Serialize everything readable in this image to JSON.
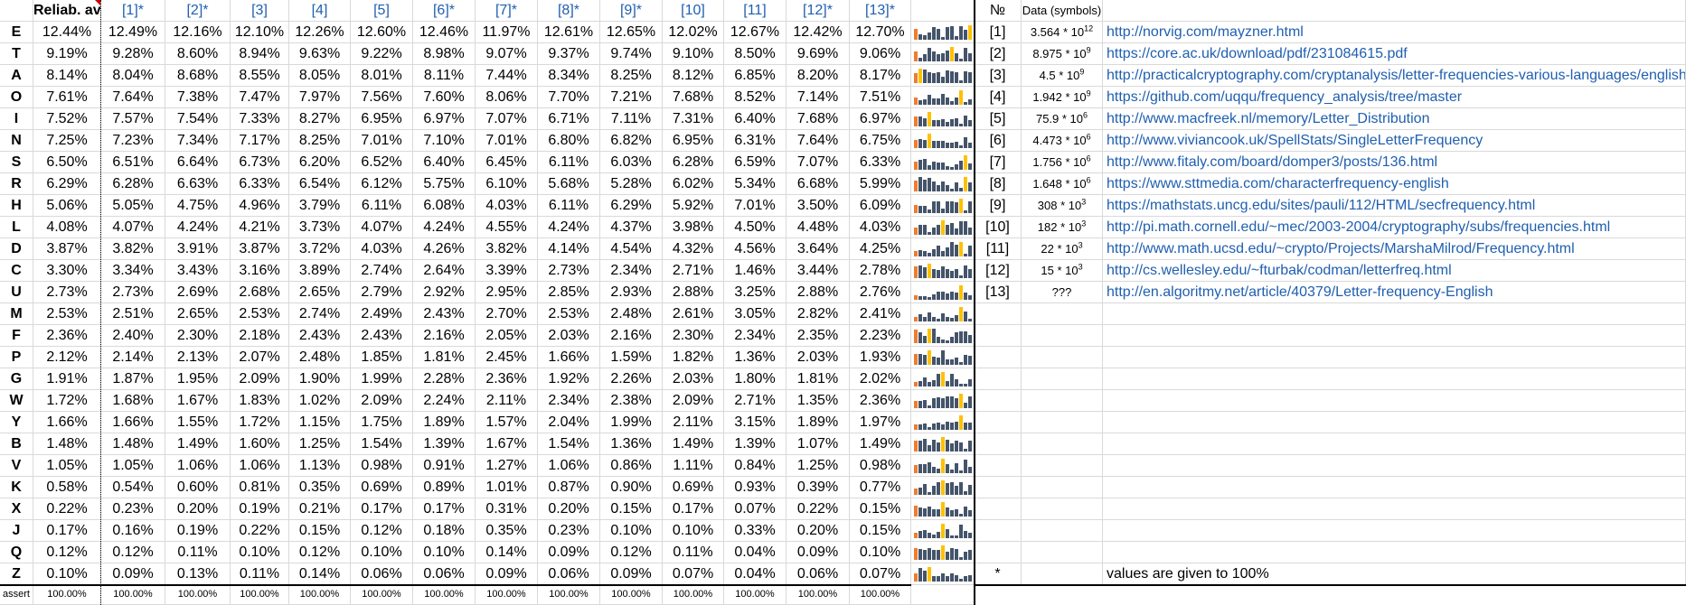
{
  "header": {
    "avg_label": "Reliab. avg",
    "sources": [
      "[1]*",
      "[2]*",
      "[3]",
      "[4]",
      "[5]",
      "[6]*",
      "[7]*",
      "[8]*",
      "[9]*",
      "[10]",
      "[11]",
      "[12]*",
      "[13]*"
    ],
    "no_label": "№",
    "data_label": "Data (symbols)"
  },
  "rows": [
    {
      "letter": "E",
      "avg": "12.44%",
      "vals": [
        "12.49%",
        "12.16%",
        "12.10%",
        "12.26%",
        "12.60%",
        "12.46%",
        "11.97%",
        "12.61%",
        "12.65%",
        "12.02%",
        "12.67%",
        "12.42%",
        "12.70%"
      ]
    },
    {
      "letter": "T",
      "avg": "9.19%",
      "vals": [
        "9.28%",
        "8.60%",
        "8.94%",
        "9.63%",
        "9.22%",
        "8.98%",
        "9.07%",
        "9.37%",
        "9.74%",
        "9.10%",
        "8.50%",
        "9.69%",
        "9.06%"
      ]
    },
    {
      "letter": "A",
      "avg": "8.14%",
      "vals": [
        "8.04%",
        "8.68%",
        "8.55%",
        "8.05%",
        "8.01%",
        "8.11%",
        "7.44%",
        "8.34%",
        "8.25%",
        "8.12%",
        "6.85%",
        "8.20%",
        "8.17%"
      ]
    },
    {
      "letter": "O",
      "avg": "7.61%",
      "vals": [
        "7.64%",
        "7.38%",
        "7.47%",
        "7.97%",
        "7.56%",
        "7.60%",
        "8.06%",
        "7.70%",
        "7.21%",
        "7.68%",
        "8.52%",
        "7.14%",
        "7.51%"
      ]
    },
    {
      "letter": "I",
      "avg": "7.52%",
      "vals": [
        "7.57%",
        "7.54%",
        "7.33%",
        "8.27%",
        "6.95%",
        "6.97%",
        "7.07%",
        "6.71%",
        "7.11%",
        "7.31%",
        "6.40%",
        "7.68%",
        "6.97%"
      ]
    },
    {
      "letter": "N",
      "avg": "7.25%",
      "vals": [
        "7.23%",
        "7.34%",
        "7.17%",
        "8.25%",
        "7.01%",
        "7.10%",
        "7.01%",
        "6.80%",
        "6.82%",
        "6.95%",
        "6.31%",
        "7.64%",
        "6.75%"
      ]
    },
    {
      "letter": "S",
      "avg": "6.50%",
      "vals": [
        "6.51%",
        "6.64%",
        "6.73%",
        "6.20%",
        "6.52%",
        "6.40%",
        "6.45%",
        "6.11%",
        "6.03%",
        "6.28%",
        "6.59%",
        "7.07%",
        "6.33%"
      ]
    },
    {
      "letter": "R",
      "avg": "6.29%",
      "vals": [
        "6.28%",
        "6.63%",
        "6.33%",
        "6.54%",
        "6.12%",
        "5.75%",
        "6.10%",
        "5.68%",
        "5.28%",
        "6.02%",
        "5.34%",
        "6.68%",
        "5.99%"
      ]
    },
    {
      "letter": "H",
      "avg": "5.06%",
      "vals": [
        "5.05%",
        "4.75%",
        "4.96%",
        "3.79%",
        "6.11%",
        "6.08%",
        "4.03%",
        "6.11%",
        "6.29%",
        "5.92%",
        "7.01%",
        "3.50%",
        "6.09%"
      ]
    },
    {
      "letter": "L",
      "avg": "4.08%",
      "vals": [
        "4.07%",
        "4.24%",
        "4.21%",
        "3.73%",
        "4.07%",
        "4.24%",
        "4.55%",
        "4.24%",
        "4.37%",
        "3.98%",
        "4.50%",
        "4.48%",
        "4.03%"
      ]
    },
    {
      "letter": "D",
      "avg": "3.87%",
      "vals": [
        "3.82%",
        "3.91%",
        "3.87%",
        "3.72%",
        "4.03%",
        "4.26%",
        "3.82%",
        "4.14%",
        "4.54%",
        "4.32%",
        "4.56%",
        "3.64%",
        "4.25%"
      ]
    },
    {
      "letter": "C",
      "avg": "3.30%",
      "vals": [
        "3.34%",
        "3.43%",
        "3.16%",
        "3.89%",
        "2.74%",
        "2.64%",
        "3.39%",
        "2.73%",
        "2.34%",
        "2.71%",
        "1.46%",
        "3.44%",
        "2.78%"
      ]
    },
    {
      "letter": "U",
      "avg": "2.73%",
      "vals": [
        "2.73%",
        "2.69%",
        "2.68%",
        "2.65%",
        "2.79%",
        "2.92%",
        "2.95%",
        "2.85%",
        "2.93%",
        "2.88%",
        "3.25%",
        "2.88%",
        "2.76%"
      ]
    },
    {
      "letter": "M",
      "avg": "2.53%",
      "vals": [
        "2.51%",
        "2.65%",
        "2.53%",
        "2.74%",
        "2.49%",
        "2.43%",
        "2.70%",
        "2.53%",
        "2.48%",
        "2.61%",
        "3.05%",
        "2.82%",
        "2.41%"
      ]
    },
    {
      "letter": "F",
      "avg": "2.36%",
      "vals": [
        "2.40%",
        "2.30%",
        "2.18%",
        "2.43%",
        "2.43%",
        "2.16%",
        "2.05%",
        "2.03%",
        "2.16%",
        "2.30%",
        "2.34%",
        "2.35%",
        "2.23%"
      ]
    },
    {
      "letter": "P",
      "avg": "2.12%",
      "vals": [
        "2.14%",
        "2.13%",
        "2.07%",
        "2.48%",
        "1.85%",
        "1.81%",
        "2.45%",
        "1.66%",
        "1.59%",
        "1.82%",
        "1.36%",
        "2.03%",
        "1.93%"
      ]
    },
    {
      "letter": "G",
      "avg": "1.91%",
      "vals": [
        "1.87%",
        "1.95%",
        "2.09%",
        "1.90%",
        "1.99%",
        "2.28%",
        "2.36%",
        "1.92%",
        "2.26%",
        "2.03%",
        "1.80%",
        "1.81%",
        "2.02%"
      ]
    },
    {
      "letter": "W",
      "avg": "1.72%",
      "vals": [
        "1.68%",
        "1.67%",
        "1.83%",
        "1.02%",
        "2.09%",
        "2.24%",
        "2.11%",
        "2.34%",
        "2.38%",
        "2.09%",
        "2.71%",
        "1.35%",
        "2.36%"
      ]
    },
    {
      "letter": "Y",
      "avg": "1.66%",
      "vals": [
        "1.66%",
        "1.55%",
        "1.72%",
        "1.15%",
        "1.75%",
        "1.89%",
        "1.57%",
        "2.04%",
        "1.99%",
        "2.11%",
        "3.15%",
        "1.89%",
        "1.97%"
      ]
    },
    {
      "letter": "B",
      "avg": "1.48%",
      "vals": [
        "1.48%",
        "1.49%",
        "1.60%",
        "1.25%",
        "1.54%",
        "1.39%",
        "1.67%",
        "1.54%",
        "1.36%",
        "1.49%",
        "1.39%",
        "1.07%",
        "1.49%"
      ]
    },
    {
      "letter": "V",
      "avg": "1.05%",
      "vals": [
        "1.05%",
        "1.06%",
        "1.06%",
        "1.13%",
        "0.98%",
        "0.91%",
        "1.27%",
        "1.06%",
        "0.86%",
        "1.11%",
        "0.84%",
        "1.25%",
        "0.98%"
      ]
    },
    {
      "letter": "K",
      "avg": "0.58%",
      "vals": [
        "0.54%",
        "0.60%",
        "0.81%",
        "0.35%",
        "0.69%",
        "0.89%",
        "1.01%",
        "0.87%",
        "0.90%",
        "0.69%",
        "0.93%",
        "0.39%",
        "0.77%"
      ]
    },
    {
      "letter": "X",
      "avg": "0.22%",
      "vals": [
        "0.23%",
        "0.20%",
        "0.19%",
        "0.21%",
        "0.17%",
        "0.17%",
        "0.31%",
        "0.20%",
        "0.15%",
        "0.17%",
        "0.07%",
        "0.22%",
        "0.15%"
      ]
    },
    {
      "letter": "J",
      "avg": "0.17%",
      "vals": [
        "0.16%",
        "0.19%",
        "0.22%",
        "0.15%",
        "0.12%",
        "0.18%",
        "0.35%",
        "0.23%",
        "0.10%",
        "0.10%",
        "0.33%",
        "0.20%",
        "0.15%"
      ]
    },
    {
      "letter": "Q",
      "avg": "0.12%",
      "vals": [
        "0.12%",
        "0.11%",
        "0.10%",
        "0.12%",
        "0.10%",
        "0.10%",
        "0.14%",
        "0.09%",
        "0.12%",
        "0.11%",
        "0.04%",
        "0.09%",
        "0.10%"
      ]
    },
    {
      "letter": "Z",
      "avg": "0.10%",
      "vals": [
        "0.09%",
        "0.13%",
        "0.11%",
        "0.14%",
        "0.06%",
        "0.06%",
        "0.09%",
        "0.06%",
        "0.09%",
        "0.07%",
        "0.04%",
        "0.06%",
        "0.07%"
      ]
    }
  ],
  "assert": {
    "label": "assert",
    "avg": "100.00%",
    "vals": [
      "100.00%",
      "100.00%",
      "100.00%",
      "100.00%",
      "100.00%",
      "100.00%",
      "100.00%",
      "100.00%",
      "100.00%",
      "100.00%",
      "100.00%",
      "100.00%",
      "100.00%"
    ]
  },
  "sources_table": [
    {
      "no": "[1]",
      "mant": "3.564 * 10",
      "exp": "12",
      "url": "http://norvig.com/mayzner.html"
    },
    {
      "no": "[2]",
      "mant": "8.975 * 10",
      "exp": "9",
      "url": "https://core.ac.uk/download/pdf/231084615.pdf"
    },
    {
      "no": "[3]",
      "mant": "4.5 * 10",
      "exp": "9",
      "url": "http://practicalcryptography.com/cryptanalysis/letter-frequencies-various-languages/english-letter-frequencies/"
    },
    {
      "no": "[4]",
      "mant": "1.942 * 10",
      "exp": "9",
      "url": "https://github.com/uqqu/frequency_analysis/tree/master"
    },
    {
      "no": "[5]",
      "mant": "75.9 * 10",
      "exp": "6",
      "url": "http://www.macfreek.nl/memory/Letter_Distribution"
    },
    {
      "no": "[6]",
      "mant": "4.473 * 10",
      "exp": "6",
      "url": "http://www.viviancook.uk/SpellStats/SingleLetterFrequency"
    },
    {
      "no": "[7]",
      "mant": "1.756 * 10",
      "exp": "6",
      "url": "http://www.fitaly.com/board/domper3/posts/136.html"
    },
    {
      "no": "[8]",
      "mant": "1.648 * 10",
      "exp": "6",
      "url": "https://www.sttmedia.com/characterfrequency-english"
    },
    {
      "no": "[9]",
      "mant": "308 * 10",
      "exp": "3",
      "url": "https://mathstats.uncg.edu/sites/pauli/112/HTML/secfrequency.html"
    },
    {
      "no": "[10]",
      "mant": "182 * 10",
      "exp": "3",
      "url": "http://pi.math.cornell.edu/~mec/2003-2004/cryptography/subs/frequencies.html"
    },
    {
      "no": "[11]",
      "mant": "22 * 10",
      "exp": "3",
      "url": "http://www.math.ucsd.edu/~crypto/Projects/MarshaMilrod/Frequency.html"
    },
    {
      "no": "[12]",
      "mant": "15 * 10",
      "exp": "3",
      "url": "http://cs.wellesley.edu/~fturbak/codman/letterfreq.html"
    },
    {
      "no": "[13]",
      "mant": "???",
      "exp": "",
      "url": "http://en.algoritmy.net/article/40379/Letter-frequency-English"
    }
  ],
  "footnote": {
    "mark": "*",
    "text": "values are given to 100%"
  },
  "colors": {
    "bar": "#44546a",
    "highlight": "#ffc000",
    "first": "#ed7d31",
    "link": "#1f5fb0",
    "grid": "#d9d9d9"
  }
}
